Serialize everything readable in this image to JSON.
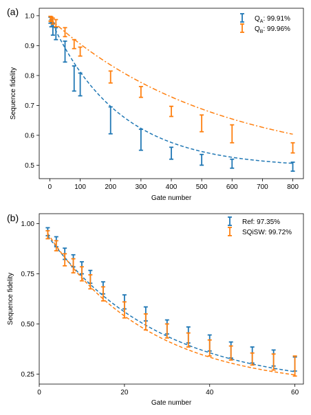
{
  "chart_data": [
    {
      "type": "scatter",
      "panel_label": "(a)",
      "xlabel": "Gate number",
      "ylabel": "Sequence fidelity",
      "xlim": [
        -35,
        835
      ],
      "ylim": [
        0.455,
        1.025
      ],
      "xticks": [
        0,
        100,
        200,
        300,
        400,
        500,
        600,
        700,
        800
      ],
      "yticks": [
        0.5,
        0.6,
        0.7,
        0.8,
        0.9,
        1.0
      ],
      "ytick_labels": [
        "0.5",
        "0.6",
        "0.7",
        "0.8",
        "0.9",
        "1.0"
      ],
      "legend_placement": "top-right",
      "series": [
        {
          "name_main": "Q",
          "name_sub": "A",
          "name_suffix": ": 99.91%",
          "color": "#1f77b4",
          "linestyle": "dashed",
          "x": [
            2,
            5,
            10,
            20,
            50,
            80,
            100,
            200,
            300,
            400,
            500,
            600,
            800
          ],
          "y": [
            0.985,
            0.975,
            0.955,
            0.94,
            0.88,
            0.79,
            0.77,
            0.65,
            0.585,
            0.54,
            0.518,
            0.505,
            0.495
          ],
          "yerr": [
            0.01,
            0.012,
            0.02,
            0.02,
            0.035,
            0.042,
            0.038,
            0.045,
            0.035,
            0.02,
            0.018,
            0.015,
            0.015
          ],
          "fit": {
            "A": 0.5,
            "p": 0.99555,
            "B": 0.492
          }
        },
        {
          "name_main": "Q",
          "name_sub": "B",
          "name_suffix": ": 99.96%",
          "color": "#ff7f0e",
          "linestyle": "dashdot",
          "x": [
            2,
            5,
            10,
            20,
            50,
            80,
            100,
            200,
            300,
            400,
            500,
            600,
            800
          ],
          "y": [
            0.99,
            0.988,
            0.982,
            0.975,
            0.945,
            0.905,
            0.88,
            0.795,
            0.745,
            0.68,
            0.64,
            0.605,
            0.558
          ],
          "yerr": [
            0.008,
            0.008,
            0.01,
            0.012,
            0.015,
            0.015,
            0.015,
            0.02,
            0.018,
            0.017,
            0.028,
            0.03,
            0.017
          ],
          "fit": {
            "A": 0.5,
            "p": 0.99815,
            "B": 0.49
          }
        }
      ]
    },
    {
      "type": "scatter",
      "panel_label": "(b)",
      "xlabel": "Gate number",
      "ylabel": "Sequence fidelity",
      "xlim": [
        0,
        62
      ],
      "ylim": [
        0.2,
        1.05
      ],
      "xticks": [
        0,
        20,
        40,
        60
      ],
      "yticks": [
        0.25,
        0.5,
        0.75,
        1.0
      ],
      "ytick_labels": [
        "0.25",
        "0.50",
        "0.75",
        "1.00"
      ],
      "legend_placement": "top-right",
      "series": [
        {
          "name_main": "Ref: 97.35%",
          "name_sub": "",
          "name_suffix": "",
          "color": "#1f77b4",
          "linestyle": "dashed",
          "x": [
            2,
            4,
            6,
            8,
            10,
            12,
            15,
            20,
            25,
            30,
            35,
            40,
            45,
            50,
            55,
            60
          ],
          "y": [
            0.96,
            0.91,
            0.85,
            0.815,
            0.78,
            0.735,
            0.68,
            0.61,
            0.55,
            0.485,
            0.445,
            0.405,
            0.37,
            0.345,
            0.33,
            0.3
          ],
          "yerr": [
            0.02,
            0.025,
            0.028,
            0.03,
            0.03,
            0.032,
            0.03,
            0.035,
            0.035,
            0.035,
            0.04,
            0.04,
            0.04,
            0.04,
            0.04,
            0.035
          ],
          "fit": {
            "A": 0.82,
            "p": 0.9623,
            "B": 0.18
          }
        },
        {
          "name_main": "SQiSW: 99.72%",
          "name_sub": "",
          "name_suffix": "",
          "color": "#ff7f0e",
          "linestyle": "dashed",
          "x": [
            2,
            4,
            6,
            8,
            10,
            12,
            15,
            20,
            25,
            30,
            35,
            40,
            45,
            50,
            55,
            60
          ],
          "y": [
            0.945,
            0.89,
            0.82,
            0.79,
            0.75,
            0.71,
            0.65,
            0.57,
            0.51,
            0.465,
            0.42,
            0.38,
            0.355,
            0.325,
            0.31,
            0.29
          ],
          "yerr": [
            0.02,
            0.025,
            0.03,
            0.035,
            0.035,
            0.035,
            0.035,
            0.04,
            0.04,
            0.035,
            0.035,
            0.04,
            0.035,
            0.03,
            0.04,
            0.05
          ],
          "fit": {
            "A": 0.84,
            "p": 0.9585,
            "B": 0.18
          }
        }
      ]
    }
  ]
}
